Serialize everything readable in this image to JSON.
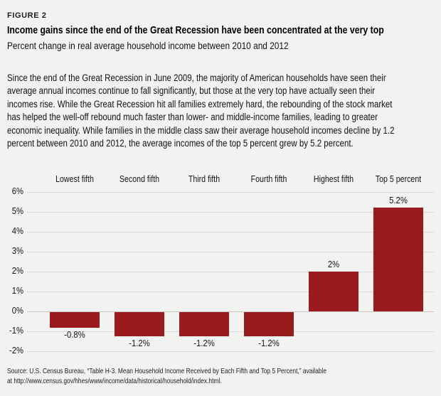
{
  "figure_label": "FIGURE 2",
  "title": "Income gains since the end of the Great Recession have been concentrated at the very top",
  "subtitle": "Percent change in real average household income between 2010 and 2012",
  "body": {
    "lines": [
      "Since the end of the Great Recession in June 2009, the majority of American households have seen their",
      "average annual incomes continue to fall significantly, but those at the very top have actually seen their",
      "incomes rise. While the Great Recession hit all families extremely hard, the rebounding of the stock market",
      "has helped the well-off rebound much faster than lower- and middle-income families, leading to greater",
      "economic inequality. While families in the middle class saw their average household incomes decline by 1.2",
      "percent between 2010 and 2012, the average incomes of the top 5 percent grew by 5.2 percent."
    ]
  },
  "source": {
    "lines": [
      "Source: U.S. Census Bureau, “Table H-3. Mean Household Income Received by Each Fifth and Top 5 Percent,” available",
      "at http://www.census.gov/hhes/www/income/data/historical/household/index.html."
    ]
  },
  "chart_data": {
    "type": "bar",
    "title": "Income gains since the end of the Great Recession have been concentrated at the very top",
    "subtitle": "Percent change in real average household income between 2010 and 2012",
    "categories": [
      "Lowest fifth",
      "Second fifth",
      "Third fifth",
      "Fourth fifth",
      "Highest fifth",
      "Top 5 percent"
    ],
    "values": [
      -0.8,
      -1.2,
      -1.2,
      -1.2,
      2,
      5.2
    ],
    "value_labels": [
      "-0.8%",
      "-1.2%",
      "-1.2%",
      "-1.2%",
      "2%",
      "5.2%"
    ],
    "xlabel": "",
    "ylabel": "",
    "ylim": [
      -2,
      6
    ],
    "yticks": [
      6,
      5,
      4,
      3,
      2,
      1,
      0,
      -1,
      -2
    ],
    "ytick_labels": [
      "6%",
      "5%",
      "4%",
      "3%",
      "2%",
      "1%",
      "0%",
      "-1%",
      "-2%"
    ],
    "grid": true,
    "legend": false,
    "bar_color": "#9a1b1e"
  },
  "colors": {
    "background": "#f2f2f0",
    "bar": "#9a1b1e",
    "gridline": "#d9d9d6",
    "zero_line": "#c7c7c4",
    "text": "#1b1b1a"
  }
}
